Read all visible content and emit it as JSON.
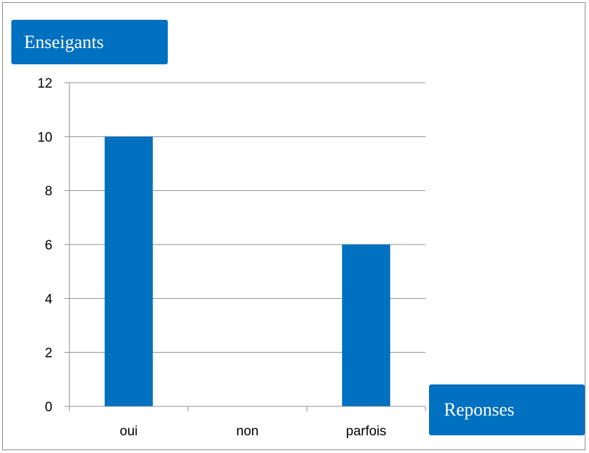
{
  "chart_data": {
    "type": "bar",
    "title": "",
    "ylabel": "Enseigants",
    "xlabel": "Reponses",
    "categories": [
      "oui",
      "non",
      "parfois"
    ],
    "values": [
      10,
      0,
      6
    ],
    "ylim": [
      0,
      12
    ],
    "yticks": [
      "0",
      "2",
      "4",
      "6",
      "8",
      "10",
      "12"
    ],
    "grid": true,
    "legend": "none",
    "colors": {
      "bar": "#0070c0",
      "label_box": "#0070c0",
      "grid": "#8c8c8c"
    }
  }
}
